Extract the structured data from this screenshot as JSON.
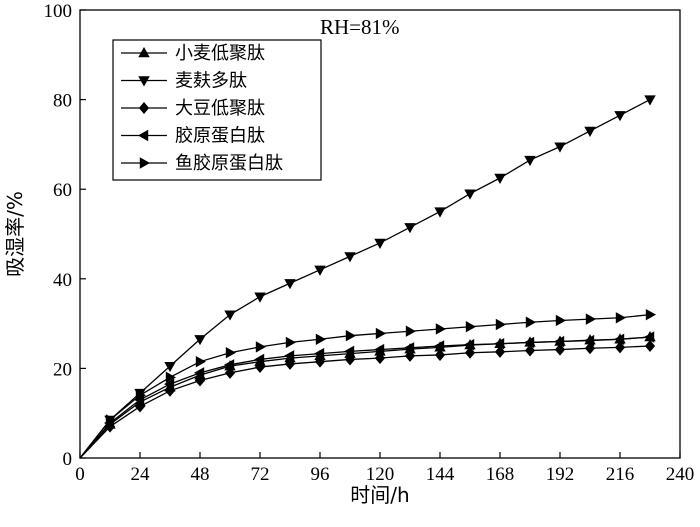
{
  "chart_data": {
    "type": "line",
    "annotation": "RH=81%",
    "xlabel": "时间/h",
    "ylabel": "吸湿率/%",
    "xlim": [
      0,
      240
    ],
    "ylim": [
      0,
      100
    ],
    "x_ticks": [
      "0",
      "24",
      "48",
      "72",
      "96",
      "120",
      "144",
      "168",
      "192",
      "216",
      "240"
    ],
    "y_ticks": [
      "0",
      "20",
      "40",
      "60",
      "80",
      "100"
    ],
    "grid": false,
    "legend_position": "top-left",
    "x": [
      0,
      12,
      24,
      36,
      48,
      60,
      72,
      84,
      96,
      108,
      120,
      132,
      144,
      156,
      168,
      180,
      192,
      204,
      216,
      228
    ],
    "series": [
      {
        "name": "小麦低聚肽",
        "marker": "triangle-up",
        "values": [
          0,
          7.5,
          12.5,
          15.8,
          18.5,
          20.5,
          21.5,
          22.3,
          22.8,
          23.3,
          23.8,
          24.3,
          24.7,
          25.2,
          25.5,
          25.8,
          26.0,
          26.3,
          26.5,
          27.0
        ]
      },
      {
        "name": "麦麸多肽",
        "marker": "triangle-down",
        "values": [
          0,
          8.5,
          14.5,
          20.5,
          26.5,
          32.0,
          36.0,
          39.0,
          42.0,
          45.0,
          48.0,
          51.5,
          55.0,
          59.0,
          62.5,
          66.5,
          69.5,
          73.0,
          76.5,
          80.0
        ]
      },
      {
        "name": "大豆低聚肽",
        "marker": "diamond",
        "values": [
          0,
          7.0,
          11.5,
          15.0,
          17.3,
          19.0,
          20.3,
          21.0,
          21.5,
          22.0,
          22.3,
          22.8,
          23.0,
          23.5,
          23.7,
          24.0,
          24.2,
          24.5,
          24.7,
          25.0
        ]
      },
      {
        "name": "胶原蛋白肽",
        "marker": "triangle-left",
        "values": [
          0,
          7.8,
          13.0,
          16.5,
          19.0,
          20.8,
          22.0,
          22.8,
          23.3,
          23.8,
          24.2,
          24.6,
          25.0,
          25.3,
          25.5,
          25.8,
          26.0,
          26.2,
          26.5,
          27.0
        ]
      },
      {
        "name": "鱼胶原蛋白肽",
        "marker": "triangle-right",
        "values": [
          0,
          8.5,
          14.0,
          18.0,
          21.5,
          23.5,
          24.8,
          25.8,
          26.5,
          27.3,
          27.8,
          28.3,
          28.8,
          29.3,
          29.8,
          30.3,
          30.7,
          31.0,
          31.3,
          32.0
        ]
      }
    ]
  }
}
